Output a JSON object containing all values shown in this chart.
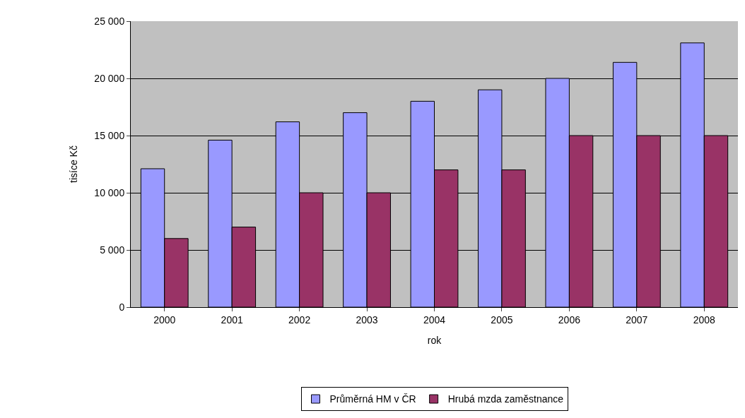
{
  "chart_data": {
    "type": "bar",
    "xlabel": "rok",
    "ylabel": "tisíce Kč",
    "categories": [
      "2000",
      "2001",
      "2002",
      "2003",
      "2004",
      "2005",
      "2006",
      "2007",
      "2008"
    ],
    "series": [
      {
        "name": "Průměrná HM v ČR",
        "color": "#9999ff",
        "values": [
          12100,
          14600,
          16200,
          17000,
          18000,
          19000,
          20000,
          21400,
          23100
        ]
      },
      {
        "name": "Hrubá mzda zaměstnance",
        "color": "#993366",
        "values": [
          6000,
          7000,
          10000,
          10000,
          12000,
          12000,
          15000,
          15000,
          15000
        ]
      }
    ],
    "ylim": [
      0,
      25000
    ],
    "yticks": [
      0,
      {
        "value": 5000,
        "label": "5 000"
      },
      {
        "value": 10000,
        "label": "10 000"
      },
      {
        "value": 15000,
        "label": "15 000"
      },
      {
        "value": 20000,
        "label": "20 000"
      },
      {
        "value": 25000,
        "label": "25 000"
      }
    ],
    "grid": "y",
    "legend": "bottom"
  }
}
